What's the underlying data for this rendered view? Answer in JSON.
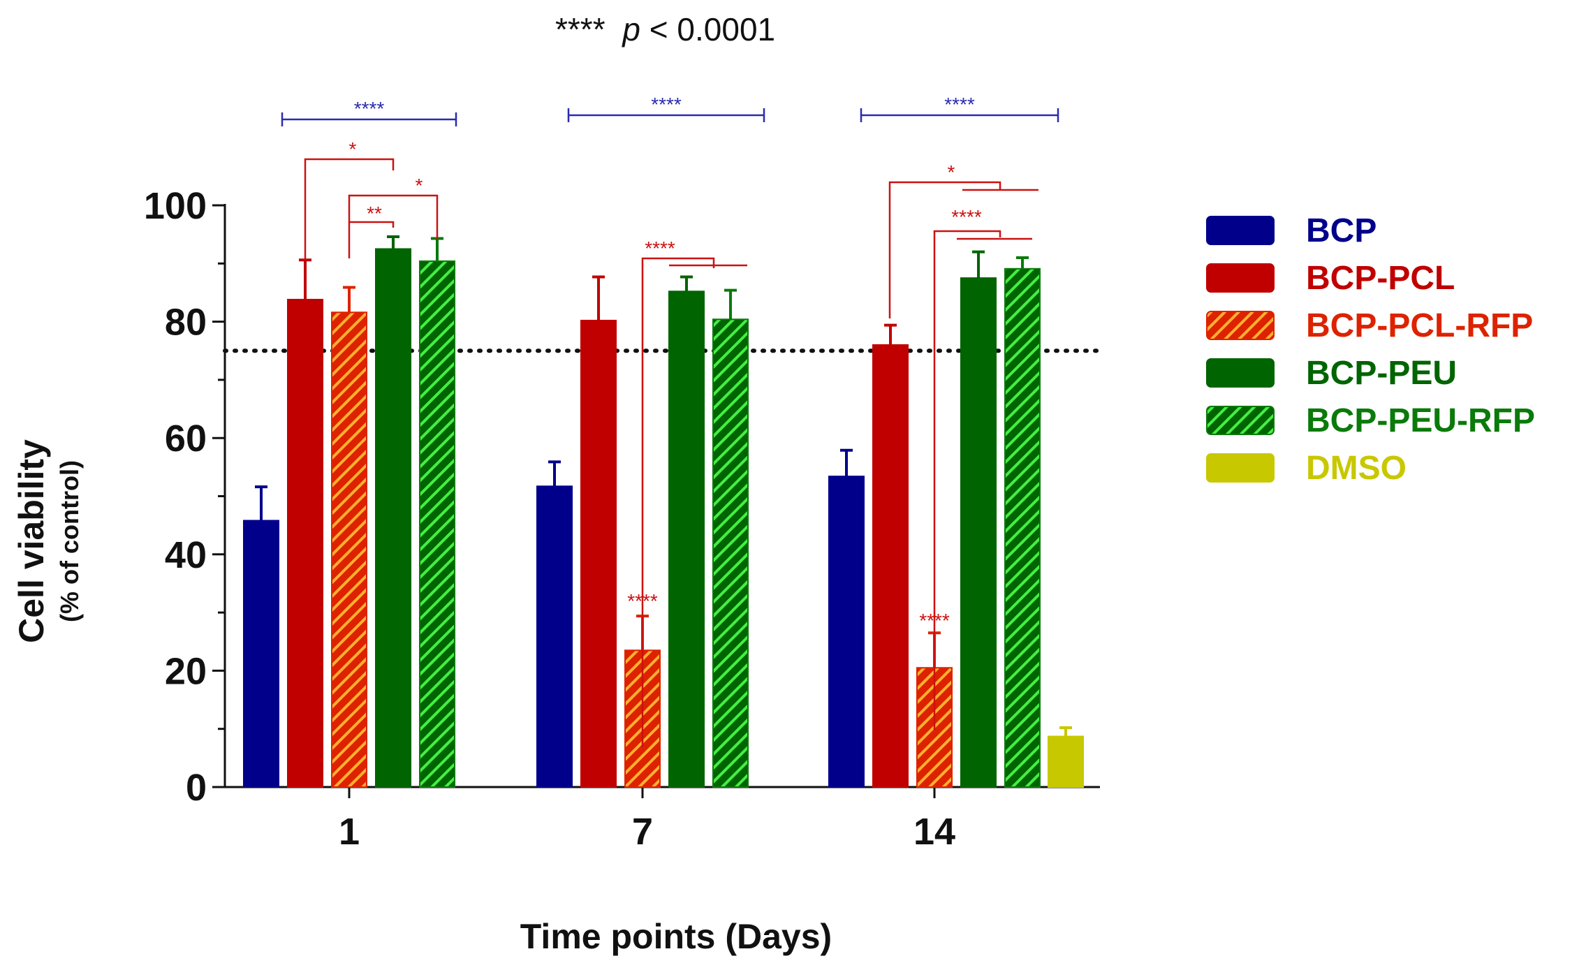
{
  "chart_data": {
    "type": "bar",
    "title": "",
    "p_note": {
      "stars": "****",
      "p": "p",
      "rest": " < 0.0001"
    },
    "xlabel": "Time points (Days)",
    "ylabel": "Cell viability",
    "ylabel_sub": "(% of control)",
    "ylim": [
      0,
      100
    ],
    "yticks": [
      0,
      20,
      40,
      60,
      80,
      100
    ],
    "categories": [
      "1",
      "7",
      "14"
    ],
    "reference_line": 75,
    "series": [
      {
        "name": "BCP",
        "color": "#00008b",
        "pattern": "solid",
        "values": [
          45.8,
          51.7,
          53.4
        ],
        "errors": [
          5.8,
          4.2,
          4.5
        ]
      },
      {
        "name": "BCP-PCL",
        "color": "#c00000",
        "pattern": "solid",
        "values": [
          83.8,
          80.2,
          76.0
        ],
        "errors": [
          6.8,
          7.5,
          3.4
        ]
      },
      {
        "name": "BCP-PCL-RFP",
        "color": "#dd2200",
        "pattern": "hatch",
        "values": [
          81.6,
          23.5,
          20.5
        ],
        "errors": [
          4.3,
          5.9,
          6.0
        ]
      },
      {
        "name": "BCP-PEU",
        "color": "#006400",
        "pattern": "solid",
        "values": [
          92.5,
          85.2,
          87.5
        ],
        "errors": [
          2.1,
          2.5,
          4.5
        ]
      },
      {
        "name": "BCP-PEU-RFP",
        "color": "#0a7a0a",
        "pattern": "hatch",
        "values": [
          90.4,
          80.4,
          89.1
        ],
        "errors": [
          3.9,
          5.0,
          1.9
        ]
      },
      {
        "name": "DMSO",
        "color": "#c8c800",
        "pattern": "solid",
        "values": [
          null,
          null,
          8.7
        ],
        "errors": [
          null,
          null,
          1.5
        ]
      }
    ],
    "significance": {
      "blue_brackets": [
        {
          "label": "****",
          "group": "1"
        },
        {
          "label": "****",
          "group": "7"
        },
        {
          "label": "****",
          "group": "14"
        }
      ],
      "red_labels": [
        {
          "label": "*",
          "group": "1",
          "comparison": "BCP-PCL vs BCP-PEU"
        },
        {
          "label": "*",
          "group": "1",
          "comparison": "BCP-PCL-RFP vs BCP-PEU-RFP"
        },
        {
          "label": "**",
          "group": "1",
          "comparison": "BCP-PCL-RFP vs BCP-PEU"
        },
        {
          "label": "****",
          "group": "7",
          "comparison": "BCP-PCL-RFP vs BCP-PEU, BCP-PEU-RFP"
        },
        {
          "label": "****",
          "group": "7",
          "comparison": "BCP-PCL-RFP bar"
        },
        {
          "label": "*",
          "group": "14",
          "comparison": "BCP-PCL vs BCP-PEU, BCP-PEU-RFP"
        },
        {
          "label": "****",
          "group": "14",
          "comparison": "BCP-PCL-RFP vs BCP-PEU, BCP-PEU-RFP"
        },
        {
          "label": "****",
          "group": "14",
          "comparison": "BCP-PCL-RFP bar"
        }
      ]
    },
    "legend": {
      "position": "right"
    }
  }
}
